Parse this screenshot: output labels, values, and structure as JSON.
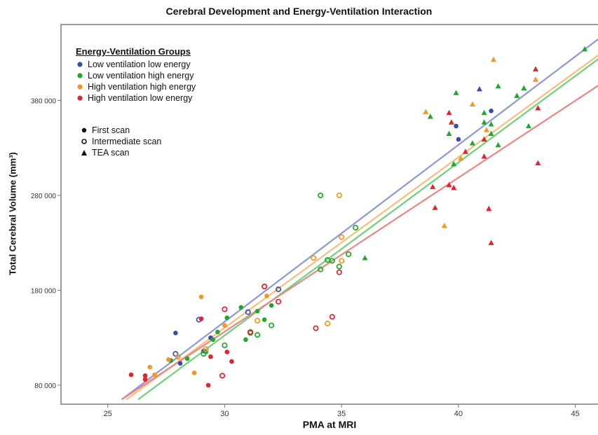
{
  "chart_data": {
    "type": "scatter",
    "title": "Cerebral Development and Energy-Ventilation Interaction",
    "xlabel": "PMA at MRI",
    "ylabel": "Total Cerebral Volume (mm³)",
    "xlim": [
      23,
      46
    ],
    "ylim": [
      60000,
      460000
    ],
    "xticks": [
      25,
      30,
      35,
      40,
      45
    ],
    "yticks": [
      80000,
      180000,
      280000,
      380000
    ],
    "ytick_labels": [
      "80 000",
      "180 000",
      "280 000",
      "380 000"
    ],
    "grid": false,
    "legend_groups": {
      "title": "Energy-Ventilation Groups",
      "placement": "top-left",
      "items": [
        {
          "label": "Low ventilation low energy",
          "color": "#3b4ba8"
        },
        {
          "label": "Low ventilation high energy",
          "color": "#1fa82e"
        },
        {
          "label": "High ventilation high energy",
          "color": "#f5961e"
        },
        {
          "label": "High ventilation low energy",
          "color": "#e3222c"
        }
      ]
    },
    "legend_markers": [
      {
        "label": "First scan",
        "marker": "dot"
      },
      {
        "label": "Intermediate scan",
        "marker": "ring"
      },
      {
        "label": "TEA scan",
        "marker": "triangle"
      }
    ],
    "fit_lines": [
      {
        "group": "Low ventilation low energy",
        "color": "#8a98d8",
        "x": [
          25.6,
          46
        ],
        "y": [
          65000,
          445000
        ]
      },
      {
        "group": "Low ventilation high energy",
        "color": "#6fd07a",
        "x": [
          26.3,
          46
        ],
        "y": [
          65000,
          424000
        ]
      },
      {
        "group": "High ventilation high energy",
        "color": "#f7be7c",
        "x": [
          25.8,
          46
        ],
        "y": [
          65000,
          428000
        ]
      },
      {
        "group": "High ventilation low energy",
        "color": "#ef8484",
        "x": [
          25.6,
          46
        ],
        "y": [
          65000,
          396000
        ]
      }
    ],
    "series": [
      {
        "name": "Low ventilation low energy",
        "color": "#3b4ba8",
        "points": [
          {
            "x": 27.9,
            "y": 135000,
            "m": "dot"
          },
          {
            "x": 28.1,
            "y": 103000,
            "m": "dot"
          },
          {
            "x": 29.1,
            "y": 116000,
            "m": "dot"
          },
          {
            "x": 29.4,
            "y": 130000,
            "m": "dot"
          },
          {
            "x": 27.9,
            "y": 113000,
            "m": "ring"
          },
          {
            "x": 28.9,
            "y": 149000,
            "m": "ring"
          },
          {
            "x": 31.0,
            "y": 157000,
            "m": "ring"
          },
          {
            "x": 32.3,
            "y": 181000,
            "m": "ring"
          },
          {
            "x": 39.9,
            "y": 353000,
            "m": "dot"
          },
          {
            "x": 40.0,
            "y": 339000,
            "m": "dot"
          },
          {
            "x": 41.4,
            "y": 369000,
            "m": "dot"
          },
          {
            "x": 40.9,
            "y": 392000,
            "m": "triangle"
          }
        ]
      },
      {
        "name": "Low ventilation high energy",
        "color": "#1fa82e",
        "points": [
          {
            "x": 27.7,
            "y": 106000,
            "m": "dot"
          },
          {
            "x": 28.4,
            "y": 108000,
            "m": "dot"
          },
          {
            "x": 29.2,
            "y": 115000,
            "m": "dot"
          },
          {
            "x": 29.5,
            "y": 128000,
            "m": "dot"
          },
          {
            "x": 29.7,
            "y": 136000,
            "m": "dot"
          },
          {
            "x": 30.1,
            "y": 151000,
            "m": "dot"
          },
          {
            "x": 30.7,
            "y": 162000,
            "m": "dot"
          },
          {
            "x": 30.9,
            "y": 128000,
            "m": "dot"
          },
          {
            "x": 31.4,
            "y": 158000,
            "m": "dot"
          },
          {
            "x": 31.7,
            "y": 149000,
            "m": "dot"
          },
          {
            "x": 32.0,
            "y": 164000,
            "m": "dot"
          },
          {
            "x": 29.1,
            "y": 113000,
            "m": "ring"
          },
          {
            "x": 30.0,
            "y": 122000,
            "m": "ring"
          },
          {
            "x": 31.1,
            "y": 135000,
            "m": "ring"
          },
          {
            "x": 31.4,
            "y": 133000,
            "m": "ring"
          },
          {
            "x": 32.0,
            "y": 143000,
            "m": "ring"
          },
          {
            "x": 34.1,
            "y": 280000,
            "m": "ring"
          },
          {
            "x": 34.1,
            "y": 202000,
            "m": "ring"
          },
          {
            "x": 34.4,
            "y": 212000,
            "m": "ring"
          },
          {
            "x": 34.6,
            "y": 211000,
            "m": "ring"
          },
          {
            "x": 34.9,
            "y": 205000,
            "m": "ring"
          },
          {
            "x": 35.3,
            "y": 218000,
            "m": "ring"
          },
          {
            "x": 35.6,
            "y": 246000,
            "m": "ring"
          },
          {
            "x": 36.0,
            "y": 214000,
            "m": "triangle"
          },
          {
            "x": 38.8,
            "y": 363000,
            "m": "triangle"
          },
          {
            "x": 39.6,
            "y": 345000,
            "m": "triangle"
          },
          {
            "x": 39.8,
            "y": 313000,
            "m": "triangle"
          },
          {
            "x": 39.9,
            "y": 388000,
            "m": "triangle"
          },
          {
            "x": 40.6,
            "y": 335000,
            "m": "triangle"
          },
          {
            "x": 41.1,
            "y": 367000,
            "m": "triangle"
          },
          {
            "x": 41.1,
            "y": 357000,
            "m": "triangle"
          },
          {
            "x": 41.4,
            "y": 345000,
            "m": "triangle"
          },
          {
            "x": 41.4,
            "y": 355000,
            "m": "triangle"
          },
          {
            "x": 41.7,
            "y": 333000,
            "m": "triangle"
          },
          {
            "x": 41.7,
            "y": 395000,
            "m": "triangle"
          },
          {
            "x": 42.5,
            "y": 385000,
            "m": "triangle"
          },
          {
            "x": 42.8,
            "y": 393000,
            "m": "triangle"
          },
          {
            "x": 43.0,
            "y": 353000,
            "m": "triangle"
          },
          {
            "x": 45.4,
            "y": 434000,
            "m": "triangle"
          }
        ]
      },
      {
        "name": "High ventilation high energy",
        "color": "#f5961e",
        "points": [
          {
            "x": 26.8,
            "y": 99000,
            "m": "dot"
          },
          {
            "x": 27.0,
            "y": 91000,
            "m": "dot"
          },
          {
            "x": 27.6,
            "y": 107000,
            "m": "dot"
          },
          {
            "x": 28.7,
            "y": 93000,
            "m": "dot"
          },
          {
            "x": 29.0,
            "y": 173000,
            "m": "dot"
          },
          {
            "x": 30.0,
            "y": 143000,
            "m": "dot"
          },
          {
            "x": 31.8,
            "y": 174000,
            "m": "dot"
          },
          {
            "x": 28.0,
            "y": 110000,
            "m": "ring"
          },
          {
            "x": 29.2,
            "y": 118000,
            "m": "ring"
          },
          {
            "x": 31.4,
            "y": 148000,
            "m": "ring"
          },
          {
            "x": 33.8,
            "y": 214000,
            "m": "ring"
          },
          {
            "x": 34.4,
            "y": 145000,
            "m": "ring"
          },
          {
            "x": 34.9,
            "y": 280000,
            "m": "ring"
          },
          {
            "x": 35.0,
            "y": 236000,
            "m": "ring"
          },
          {
            "x": 35.0,
            "y": 211000,
            "m": "ring"
          },
          {
            "x": 38.6,
            "y": 368000,
            "m": "triangle"
          },
          {
            "x": 39.4,
            "y": 248000,
            "m": "triangle"
          },
          {
            "x": 40.1,
            "y": 319000,
            "m": "triangle"
          },
          {
            "x": 40.6,
            "y": 376000,
            "m": "triangle"
          },
          {
            "x": 41.2,
            "y": 349000,
            "m": "triangle"
          },
          {
            "x": 41.5,
            "y": 423000,
            "m": "triangle"
          },
          {
            "x": 43.3,
            "y": 402000,
            "m": "triangle"
          }
        ]
      },
      {
        "name": "High ventilation low energy",
        "color": "#e3222c",
        "points": [
          {
            "x": 26.0,
            "y": 91000,
            "m": "dot"
          },
          {
            "x": 26.6,
            "y": 90000,
            "m": "dot"
          },
          {
            "x": 26.6,
            "y": 86000,
            "m": "dot"
          },
          {
            "x": 29.0,
            "y": 150000,
            "m": "dot"
          },
          {
            "x": 29.3,
            "y": 80000,
            "m": "dot"
          },
          {
            "x": 29.4,
            "y": 110000,
            "m": "dot"
          },
          {
            "x": 30.1,
            "y": 115000,
            "m": "dot"
          },
          {
            "x": 30.3,
            "y": 105000,
            "m": "dot"
          },
          {
            "x": 30.0,
            "y": 160000,
            "m": "ring"
          },
          {
            "x": 29.9,
            "y": 90000,
            "m": "ring"
          },
          {
            "x": 31.1,
            "y": 136000,
            "m": "ring"
          },
          {
            "x": 31.7,
            "y": 184000,
            "m": "ring"
          },
          {
            "x": 32.3,
            "y": 168000,
            "m": "ring"
          },
          {
            "x": 33.9,
            "y": 140000,
            "m": "ring"
          },
          {
            "x": 34.6,
            "y": 152000,
            "m": "ring"
          },
          {
            "x": 34.9,
            "y": 199000,
            "m": "ring"
          },
          {
            "x": 38.9,
            "y": 289000,
            "m": "triangle"
          },
          {
            "x": 39.0,
            "y": 267000,
            "m": "triangle"
          },
          {
            "x": 39.6,
            "y": 367000,
            "m": "triangle"
          },
          {
            "x": 39.7,
            "y": 357000,
            "m": "triangle"
          },
          {
            "x": 39.6,
            "y": 291000,
            "m": "triangle"
          },
          {
            "x": 39.8,
            "y": 288000,
            "m": "triangle"
          },
          {
            "x": 40.3,
            "y": 326000,
            "m": "triangle"
          },
          {
            "x": 41.1,
            "y": 339000,
            "m": "triangle"
          },
          {
            "x": 41.1,
            "y": 321000,
            "m": "triangle"
          },
          {
            "x": 41.3,
            "y": 266000,
            "m": "triangle"
          },
          {
            "x": 41.4,
            "y": 230000,
            "m": "triangle"
          },
          {
            "x": 43.3,
            "y": 413000,
            "m": "triangle"
          },
          {
            "x": 43.4,
            "y": 372000,
            "m": "triangle"
          },
          {
            "x": 43.4,
            "y": 314000,
            "m": "triangle"
          }
        ]
      }
    ]
  }
}
